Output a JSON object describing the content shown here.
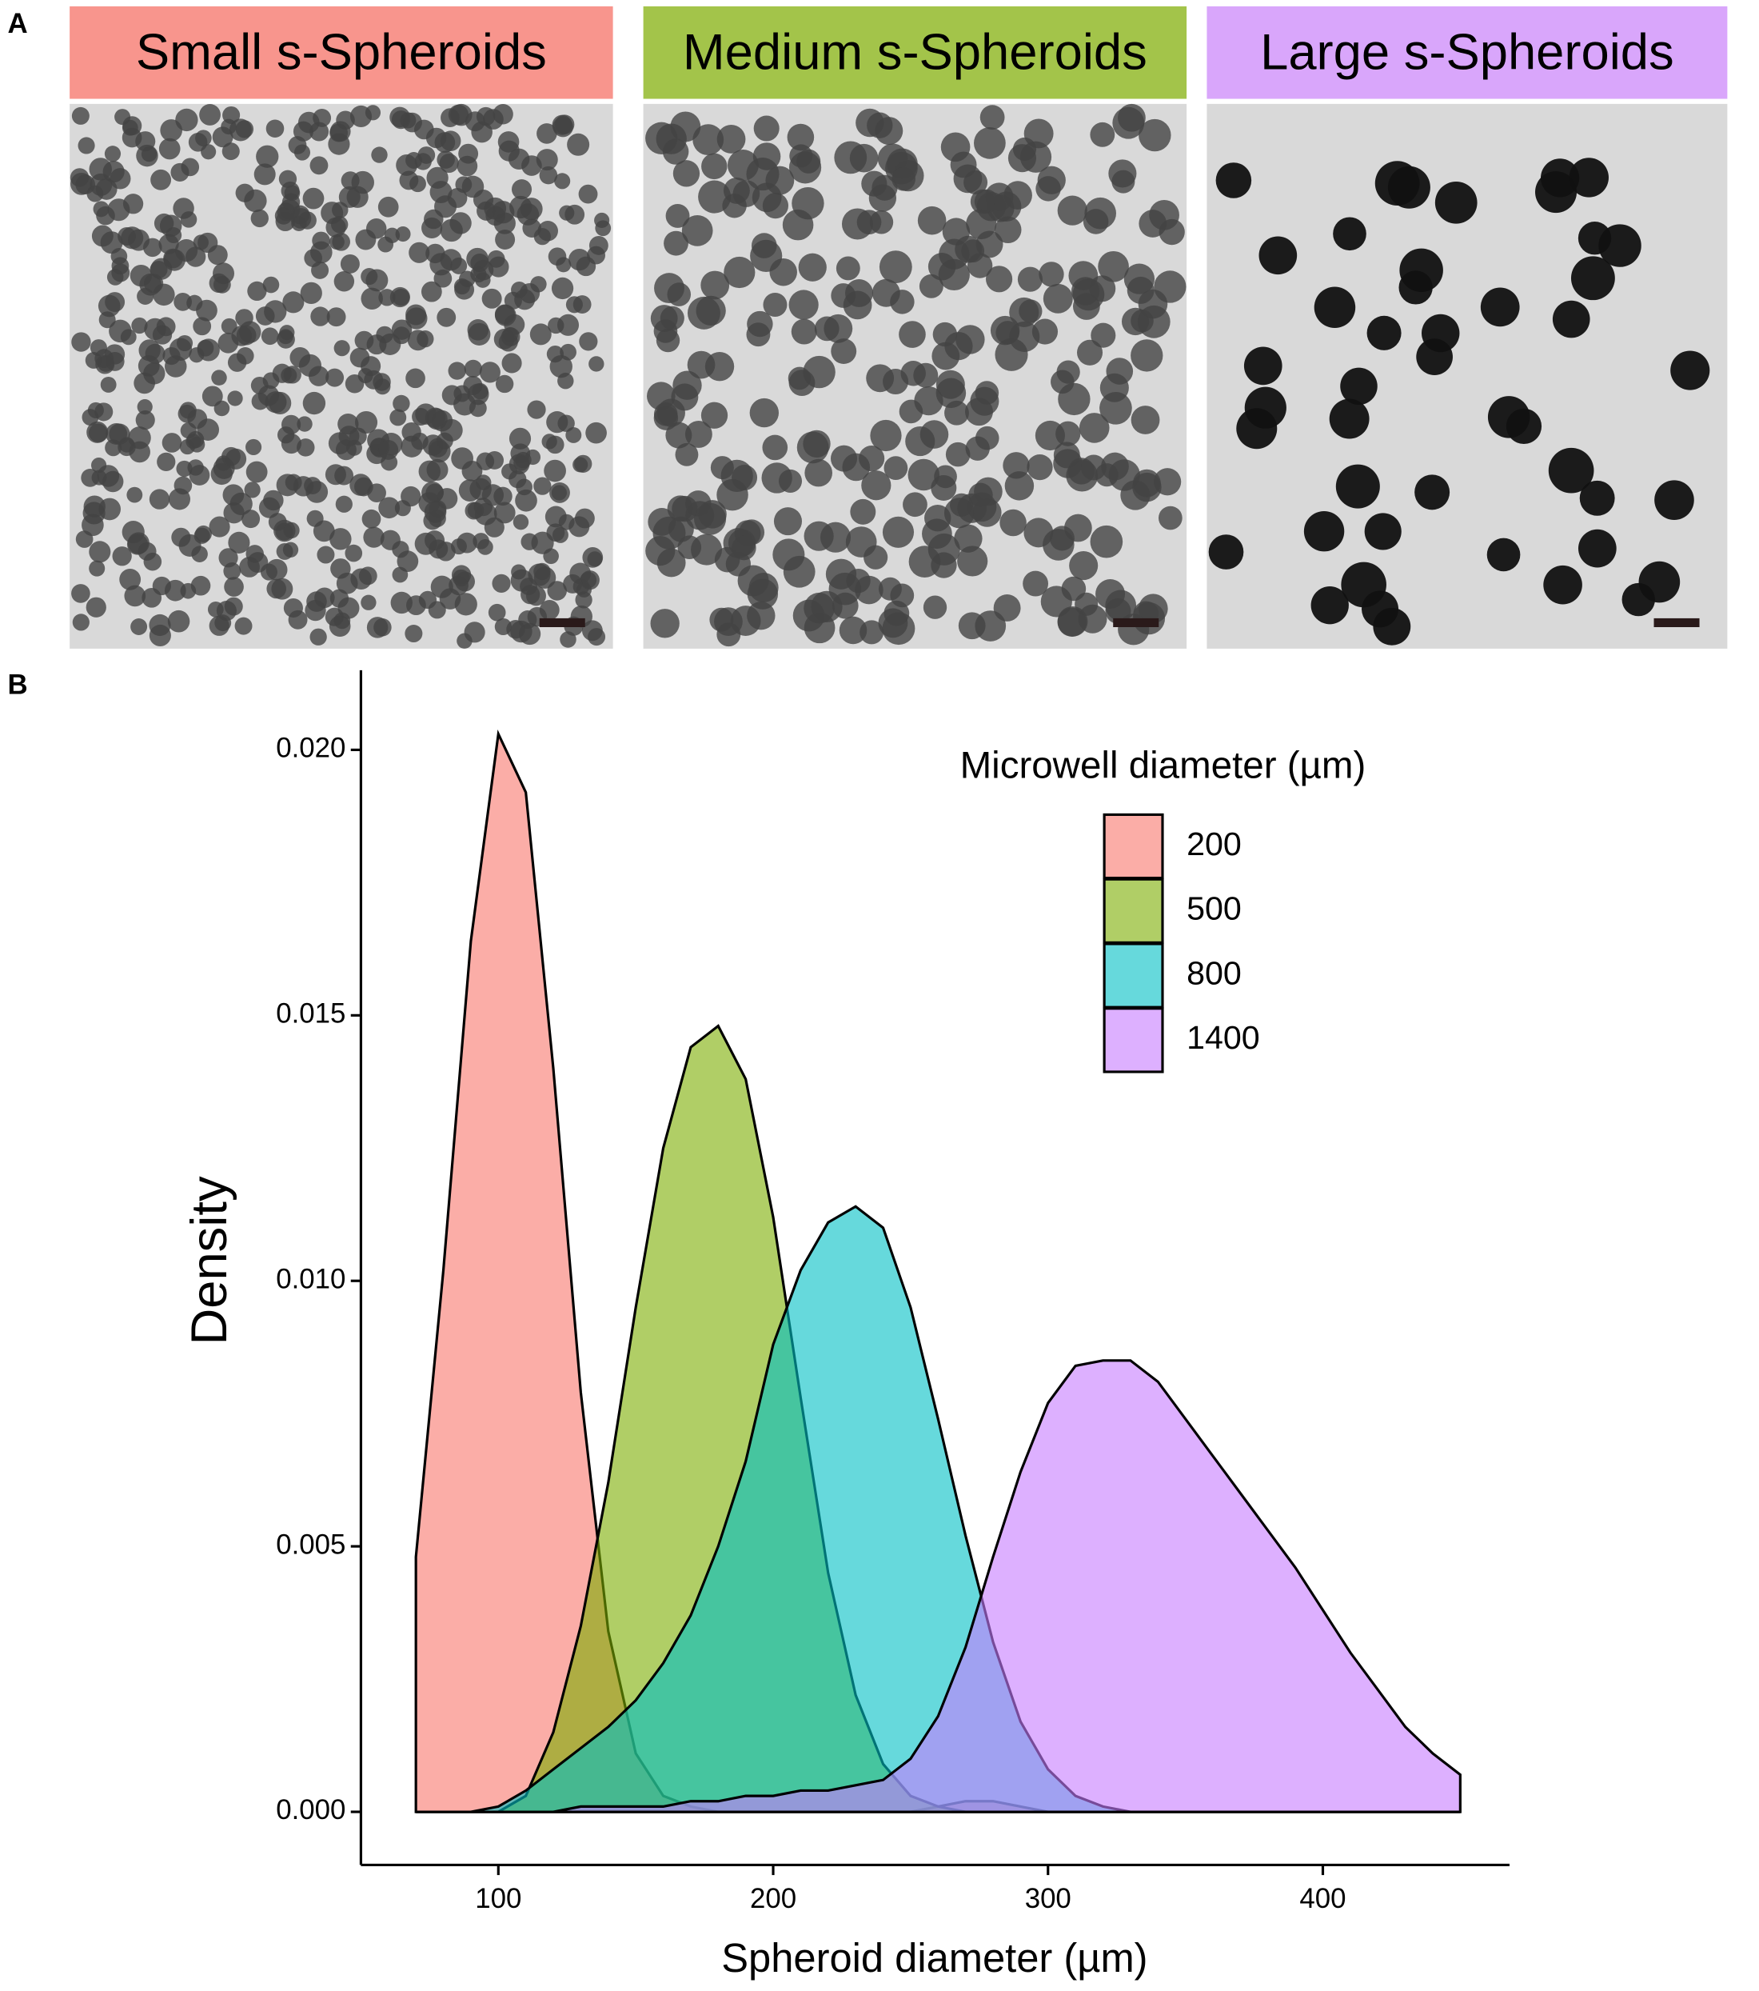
{
  "panel_labels": [
    "A",
    "B"
  ],
  "images": [
    {
      "label": "Small s-Spheroids",
      "color": "#f8958d"
    },
    {
      "label": "Medium s-Spheroids",
      "color": "#a3c44a"
    },
    {
      "label": "Large s-Spheroids",
      "color": "#d9a6fb"
    }
  ],
  "chart_data": {
    "type": "density",
    "xlabel": "Spheroid diameter (µm)",
    "ylabel": "Density",
    "legend_title": "Microwell diameter (µm)",
    "legend": "top-right",
    "x": [
      70,
      80,
      90,
      100,
      110,
      120,
      130,
      140,
      150,
      160,
      170,
      180,
      190,
      200,
      210,
      220,
      230,
      240,
      250,
      260,
      270,
      280,
      290,
      300,
      310,
      320,
      330,
      340,
      350,
      360,
      370,
      380,
      390,
      400,
      410,
      420,
      430,
      440,
      450
    ],
    "series": [
      {
        "name": "200",
        "color": "#F8766D",
        "values": [
          0.0048,
          0.0102,
          0.0164,
          0.0203,
          0.0192,
          0.014,
          0.0079,
          0.0034,
          0.0011,
          0.0003,
          0.0001,
          0,
          0,
          0,
          0,
          0,
          0,
          0,
          0,
          0.0001,
          0.0002,
          0.0002,
          0.0001,
          0,
          0,
          0,
          0,
          0,
          0,
          0,
          0,
          0,
          0,
          0,
          0,
          0,
          0,
          0,
          0
        ]
      },
      {
        "name": "500",
        "color": "#7CAE00",
        "values": [
          0,
          0,
          0,
          0,
          0.0003,
          0.0015,
          0.0035,
          0.0062,
          0.0095,
          0.0125,
          0.0144,
          0.0148,
          0.0138,
          0.0112,
          0.0078,
          0.0045,
          0.0022,
          0.0009,
          0.0003,
          0.0001,
          0,
          0,
          0,
          0,
          0,
          0,
          0,
          0,
          0,
          0,
          0,
          0,
          0,
          0,
          0,
          0,
          0,
          0,
          0
        ]
      },
      {
        "name": "800",
        "color": "#00BFC4",
        "values": [
          0,
          0,
          0,
          0.0001,
          0.0004,
          0.0008,
          0.0012,
          0.0016,
          0.0021,
          0.0028,
          0.0037,
          0.005,
          0.0066,
          0.0088,
          0.0102,
          0.0111,
          0.0114,
          0.011,
          0.0095,
          0.0074,
          0.0052,
          0.0032,
          0.0017,
          0.0008,
          0.0003,
          0.0001,
          0,
          0,
          0,
          0,
          0,
          0,
          0,
          0,
          0,
          0,
          0,
          0,
          0
        ]
      },
      {
        "name": "1400",
        "color": "#C77CFF",
        "values": [
          0,
          0,
          0,
          0,
          0,
          0,
          0.0001,
          0.0001,
          0.0001,
          0.0001,
          0.0002,
          0.0002,
          0.0003,
          0.0003,
          0.0004,
          0.0004,
          0.0005,
          0.0006,
          0.001,
          0.0018,
          0.0031,
          0.0048,
          0.0064,
          0.0077,
          0.0084,
          0.0085,
          0.0085,
          0.0081,
          0.0074,
          0.0067,
          0.006,
          0.0053,
          0.0046,
          0.0038,
          0.003,
          0.0023,
          0.0016,
          0.0011,
          0.0007
        ]
      }
    ],
    "xlim": [
      50,
      467
    ],
    "ylim": [
      -0.001,
      0.0215
    ],
    "xticks": [
      100,
      200,
      300,
      400
    ],
    "yticks": [
      {
        "value": 0,
        "label": "0.000"
      },
      {
        "value": 0.005,
        "label": "0.005"
      },
      {
        "value": 0.01,
        "label": "0.010"
      },
      {
        "value": 0.015,
        "label": "0.015"
      },
      {
        "value": 0.02,
        "label": "0.020"
      }
    ]
  }
}
